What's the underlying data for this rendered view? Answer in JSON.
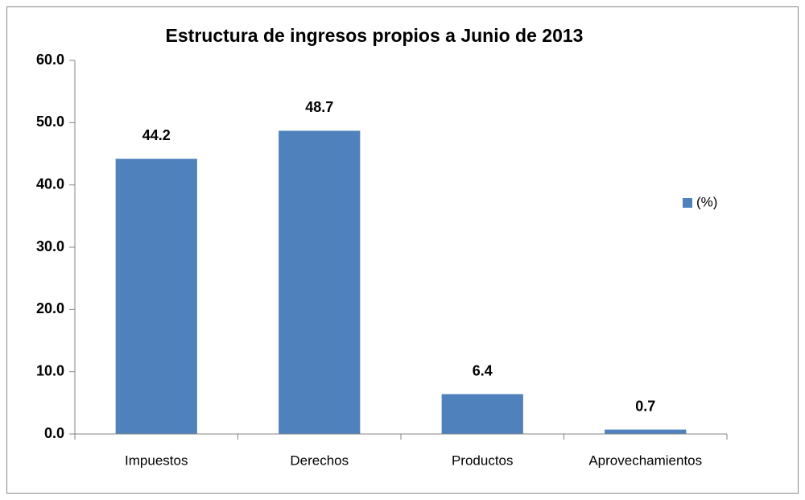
{
  "chart_data": {
    "type": "bar",
    "title": "Estructura de ingresos propios a Junio de 2013",
    "categories": [
      "Impuestos",
      "Derechos",
      "Productos",
      "Aprovechamientos"
    ],
    "series": [
      {
        "name": "(%)",
        "color": "#4f81bd",
        "values": [
          44.2,
          48.7,
          6.4,
          0.7
        ]
      }
    ],
    "ylim": [
      0,
      60
    ],
    "yticks": [
      {
        "value": 0,
        "label": "0.0"
      },
      {
        "value": 10,
        "label": "10.0"
      },
      {
        "value": 20,
        "label": "20.0"
      },
      {
        "value": 30,
        "label": "30.0"
      },
      {
        "value": 40,
        "label": "40.0"
      },
      {
        "value": 50,
        "label": "50.0"
      },
      {
        "value": 60,
        "label": "60.0"
      }
    ],
    "grid": false,
    "legend": "right"
  }
}
